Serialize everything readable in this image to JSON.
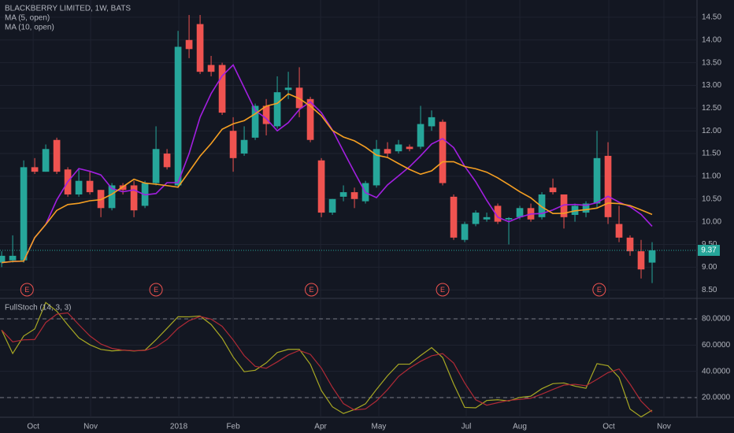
{
  "chart_data": {
    "type": "candlestick",
    "title": "BLACKBERRY LIMITED, 1W, BATS",
    "x": [
      0,
      1,
      2,
      3,
      4,
      5,
      6,
      7,
      8,
      9,
      10,
      11,
      12,
      13,
      14,
      15,
      16,
      17,
      18,
      19,
      20,
      21,
      22,
      23,
      24,
      25,
      26,
      27,
      28,
      29,
      30,
      31,
      32,
      33,
      34,
      35,
      36,
      37,
      38,
      39,
      40,
      41,
      42,
      43,
      44,
      45,
      46,
      47,
      48,
      49,
      50,
      51,
      52,
      53,
      54,
      55,
      56,
      57,
      58,
      59
    ],
    "open": [
      9.1,
      9.15,
      9.15,
      11.2,
      11.1,
      11.8,
      11.15,
      10.6,
      10.9,
      10.7,
      10.3,
      10.8,
      10.8,
      10.35,
      10.85,
      11.5,
      10.8,
      14.0,
      14.35,
      13.45,
      13.45,
      12.0,
      11.5,
      11.85,
      12.55,
      12.1,
      12.9,
      12.95,
      12.7,
      11.35,
      10.2,
      10.55,
      10.65,
      10.45,
      10.8,
      11.6,
      11.55,
      11.65,
      11.65,
      12.1,
      12.2,
      10.55,
      9.6,
      9.95,
      10.05,
      10.35,
      10.05,
      10.1,
      10.3,
      10.1,
      10.75,
      10.6,
      10.15,
      10.2,
      10.4,
      11.45,
      9.95,
      9.65,
      9.35,
      9.1
    ],
    "high": [
      9.35,
      9.7,
      11.35,
      11.4,
      11.7,
      11.85,
      11.2,
      11.15,
      11.1,
      10.7,
      10.85,
      10.85,
      10.9,
      10.9,
      12.1,
      11.6,
      14.2,
      14.55,
      14.55,
      13.65,
      13.5,
      12.3,
      12.1,
      12.6,
      12.7,
      13.2,
      13.3,
      13.4,
      12.75,
      11.4,
      10.5,
      10.8,
      10.75,
      10.9,
      11.8,
      11.75,
      11.8,
      11.7,
      12.55,
      12.45,
      12.25,
      10.6,
      10.0,
      10.25,
      10.2,
      10.4,
      10.1,
      10.35,
      10.4,
      10.65,
      10.95,
      10.6,
      10.4,
      10.45,
      12.0,
      11.75,
      10.35,
      9.7,
      9.6,
      9.55
    ],
    "low": [
      9.0,
      9.1,
      9.1,
      11.05,
      11.1,
      11.05,
      10.55,
      10.55,
      10.6,
      10.1,
      10.25,
      10.6,
      10.1,
      10.3,
      10.8,
      11.15,
      10.75,
      13.6,
      13.25,
      13.2,
      12.35,
      11.1,
      11.45,
      11.8,
      11.9,
      12.05,
      12.7,
      12.3,
      11.75,
      10.1,
      10.15,
      10.45,
      10.3,
      10.4,
      10.75,
      11.4,
      11.5,
      11.55,
      11.6,
      12.0,
      10.8,
      9.6,
      9.55,
      9.9,
      10.0,
      9.95,
      9.5,
      10.05,
      10.0,
      10.05,
      10.6,
      9.85,
      10.0,
      10.1,
      10.3,
      9.95,
      9.55,
      9.25,
      8.75,
      8.65
    ],
    "close": [
      9.25,
      9.25,
      11.2,
      11.1,
      11.6,
      11.1,
      10.6,
      10.9,
      10.65,
      10.3,
      10.8,
      10.7,
      10.25,
      10.85,
      11.6,
      11.2,
      13.85,
      13.8,
      13.3,
      13.3,
      12.4,
      11.4,
      11.8,
      12.55,
      12.15,
      12.85,
      12.95,
      12.5,
      11.8,
      10.2,
      10.5,
      10.65,
      10.5,
      10.85,
      11.6,
      11.5,
      11.7,
      11.6,
      12.15,
      12.3,
      10.85,
      9.65,
      9.95,
      10.2,
      10.1,
      10.0,
      10.08,
      10.3,
      10.05,
      10.6,
      10.65,
      10.1,
      10.35,
      10.4,
      11.4,
      10.1,
      9.65,
      9.35,
      8.95,
      9.37
    ],
    "up_color": "#26a69a",
    "down_color": "#ef5350",
    "xlim": [
      -0.15,
      63.07
    ],
    "xticks": [
      {
        "value": 2.86,
        "label": "Oct"
      },
      {
        "value": 8.07,
        "label": "Nov"
      },
      {
        "value": 16.07,
        "label": "2018"
      },
      {
        "value": 21.0,
        "label": "Feb"
      },
      {
        "value": 28.93,
        "label": "Apr"
      },
      {
        "value": 34.21,
        "label": "May"
      },
      {
        "value": 42.14,
        "label": "Jul"
      },
      {
        "value": 47.0,
        "label": "Aug"
      },
      {
        "value": 55.07,
        "label": "Oct"
      },
      {
        "value": 60.07,
        "label": "Nov"
      }
    ],
    "ylim": [
      8.33,
      14.88
    ],
    "yticks": [
      {
        "value": 8.5,
        "label": "8.50"
      },
      {
        "value": 9,
        "label": "9.00"
      },
      {
        "value": 9.5,
        "label": "9.50"
      },
      {
        "value": 10,
        "label": "10.00"
      },
      {
        "value": 10.5,
        "label": "10.50"
      },
      {
        "value": 11,
        "label": "11.00"
      },
      {
        "value": 11.5,
        "label": "11.50"
      },
      {
        "value": 12,
        "label": "12.00"
      },
      {
        "value": 12.5,
        "label": "12.50"
      },
      {
        "value": 13,
        "label": "13.00"
      },
      {
        "value": 13.5,
        "label": "13.50"
      },
      {
        "value": 14,
        "label": "14.00"
      },
      {
        "value": 14.5,
        "label": "14.50"
      }
    ],
    "grid": true,
    "moving_averages": [
      {
        "name": "MA (5, open)",
        "period": 5,
        "color": "#a21fe0"
      },
      {
        "name": "MA (10, open)",
        "period": 10,
        "color": "#f59f22"
      }
    ],
    "last_price": 9.37,
    "earnings": {
      "label": "E",
      "x": [
        2.3,
        14.0,
        28.1,
        40.0,
        54.2
      ]
    },
    "stochastic": {
      "name": "FullStoch (14, 3, 3)",
      "period": 14,
      "k_smooth": 3,
      "d_smooth": 3,
      "k_color": "#a8a823",
      "d_color": "#b02a36",
      "ylim": [
        5,
        95
      ],
      "yticks": [
        {
          "value": 20,
          "label": "20.0000"
        },
        {
          "value": 40,
          "label": "40.0000"
        },
        {
          "value": 60,
          "label": "60.0000"
        },
        {
          "value": 80,
          "label": "80.0000"
        }
      ],
      "bands": [
        20,
        80
      ]
    }
  }
}
